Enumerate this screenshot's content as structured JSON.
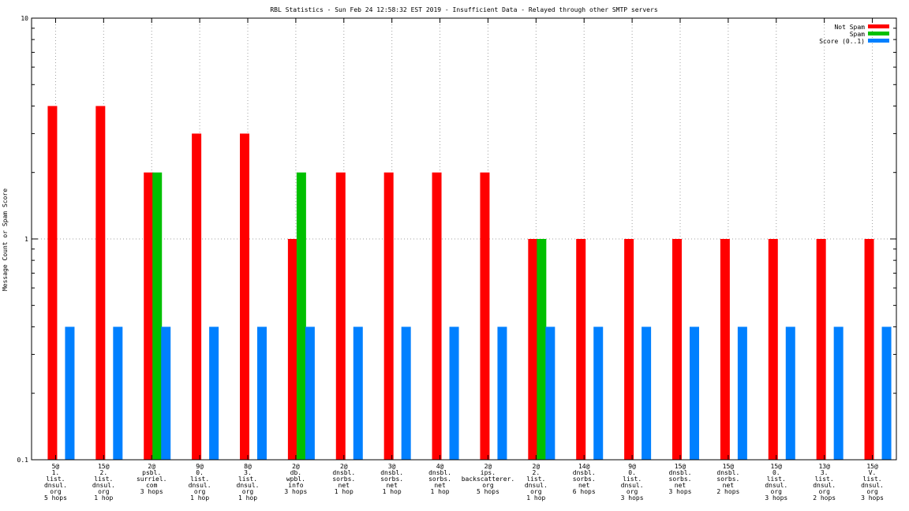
{
  "chart_data": {
    "type": "bar",
    "title": "RBL Statistics - Sun Feb 24 12:58:32 EST 2019 - Insufficient Data - Relayed through other SMTP servers",
    "ylabel": "Message Count or Spam Score",
    "xlabel": "",
    "yscale": "log",
    "ylim": [
      0.1,
      10
    ],
    "yticks": [
      {
        "value": 10,
        "label": "10"
      },
      {
        "value": 1,
        "label": "1"
      },
      {
        "value": 0.1,
        "label": "0.1"
      }
    ],
    "grid": true,
    "legend_position": "top-right",
    "categories": [
      [
        "5@",
        "1.",
        "list.",
        "dnsul.",
        "org",
        "5 hops"
      ],
      [
        "15@",
        "2.",
        "list.",
        "dnsul.",
        "org",
        "1 hop"
      ],
      [
        "2@",
        "psbl.",
        "surriel.",
        "com",
        "3 hops"
      ],
      [
        "9@",
        "0.",
        "list.",
        "dnsul.",
        "org",
        "1 hop"
      ],
      [
        "8@",
        "3.",
        "list.",
        "dnsul.",
        "org",
        "1 hop"
      ],
      [
        "2@",
        "db.",
        "wpbl.",
        "info",
        "3 hops"
      ],
      [
        "2@",
        "dnsbl.",
        "sorbs.",
        "net",
        "1 hop"
      ],
      [
        "3@",
        "dnsbl.",
        "sorbs.",
        "net",
        "1 hop"
      ],
      [
        "4@",
        "dnsbl.",
        "sorbs.",
        "net",
        "1 hop"
      ],
      [
        "2@",
        "ips.",
        "backscatterer.",
        "org",
        "5 hops"
      ],
      [
        "2@",
        "2.",
        "list.",
        "dnsul.",
        "org",
        "1 hop"
      ],
      [
        "14@",
        "dnsbl.",
        "sorbs.",
        "net",
        "6 hops"
      ],
      [
        "9@",
        "0.",
        "list.",
        "dnsul.",
        "org",
        "3 hops"
      ],
      [
        "15@",
        "dnsbl.",
        "sorbs.",
        "net",
        "3 hops"
      ],
      [
        "15@",
        "dnsbl.",
        "sorbs.",
        "net",
        "2 hops"
      ],
      [
        "15@",
        "0.",
        "list.",
        "dnsul.",
        "org",
        "3 hops"
      ],
      [
        "13@",
        "3.",
        "list.",
        "dnsul.",
        "org",
        "2 hops"
      ],
      [
        "15@",
        "V.",
        "list.",
        "dnsul.",
        "org",
        "3 hops"
      ]
    ],
    "series": [
      {
        "name": "Not Spam",
        "color": "#ff0000",
        "values": [
          4,
          4,
          2,
          3,
          3,
          1,
          2,
          2,
          2,
          2,
          1,
          1,
          1,
          1,
          1,
          1,
          1,
          1
        ]
      },
      {
        "name": "Spam",
        "color": "#00c000",
        "values": [
          0,
          0,
          2,
          0,
          0,
          2,
          0,
          0,
          0,
          0,
          1,
          0,
          0,
          0,
          0,
          0,
          0,
          0
        ]
      },
      {
        "name": "Score (0..1)",
        "color": "#0080ff",
        "values": [
          0.4,
          0.4,
          0.4,
          0.4,
          0.4,
          0.4,
          0.4,
          0.4,
          0.4,
          0.4,
          0.4,
          0.4,
          0.4,
          0.4,
          0.4,
          0.4,
          0.4,
          0.4
        ]
      }
    ]
  }
}
